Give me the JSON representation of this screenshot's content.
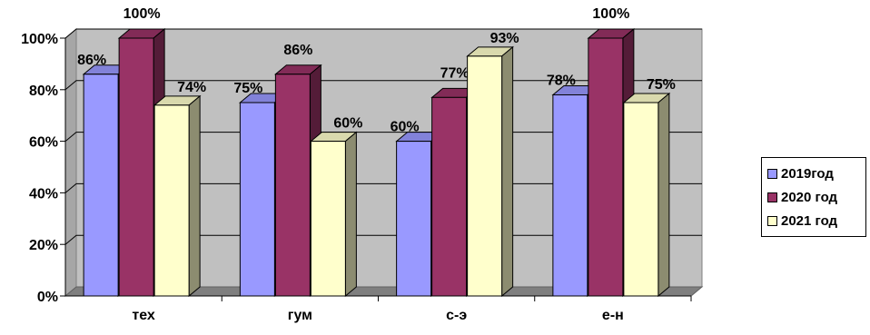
{
  "chart_data": {
    "type": "bar",
    "categories": [
      "тех",
      "гум",
      "с-э",
      "е-н"
    ],
    "series": [
      {
        "name": "2019год",
        "values": [
          86,
          75,
          60,
          78
        ],
        "labels": [
          "86%",
          "75%",
          "60%",
          "78%"
        ],
        "color": "#9999ff"
      },
      {
        "name": "2020 год",
        "values": [
          100,
          86,
          77,
          100
        ],
        "labels": [
          "100%",
          "86%",
          "77%",
          "100%"
        ],
        "color": "#993366"
      },
      {
        "name": "2021 год",
        "values": [
          74,
          60,
          93,
          75
        ],
        "labels": [
          "74%",
          "60%",
          "93%",
          "75%"
        ],
        "color": "#ffffcc"
      }
    ],
    "y_ticks": [
      "0%",
      "20%",
      "40%",
      "60%",
      "80%",
      "100%"
    ],
    "ylim": [
      0,
      100
    ],
    "style": "3d-clustered-column",
    "grid": true,
    "legend_position": "right"
  }
}
